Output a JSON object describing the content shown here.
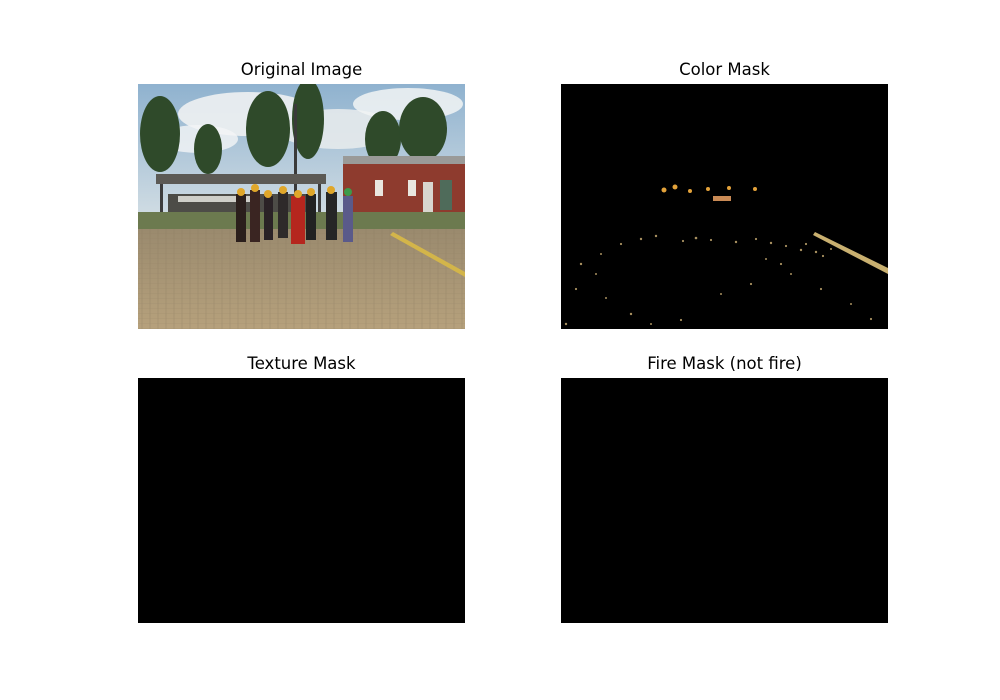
{
  "figure": {
    "panels": [
      {
        "title": "Original Image",
        "kind": "photo"
      },
      {
        "title": "Color Mask",
        "kind": "mask"
      },
      {
        "title": "Texture Mask",
        "kind": "mask"
      },
      {
        "title": "Fire Mask (not fire)",
        "kind": "mask"
      }
    ]
  }
}
